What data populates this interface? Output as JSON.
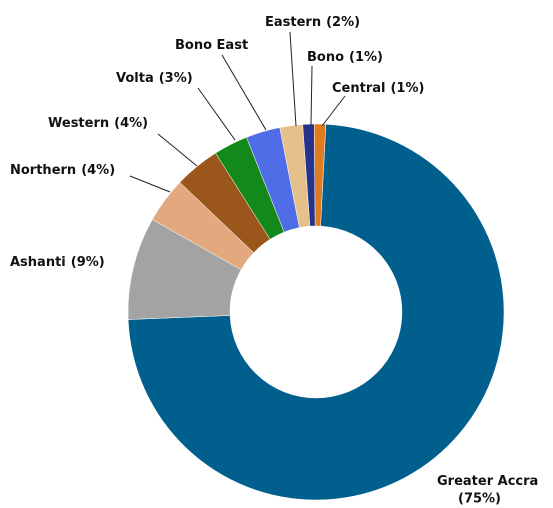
{
  "chart_data": {
    "type": "donut",
    "categories": [
      "Greater Accra",
      "Ashanti",
      "Northern",
      "Western",
      "Volta",
      "Bono East",
      "Eastern",
      "Bono",
      "Central"
    ],
    "values": [
      75,
      9,
      4,
      4,
      3,
      3,
      2,
      1,
      1
    ],
    "value_labels": [
      "(75%)",
      "(9%)",
      "(4%)",
      "(4%)",
      "(3%)",
      null,
      "(2%)",
      "(1%)",
      "(1%)"
    ],
    "colors": [
      "#005f8c",
      "#a3a3a3",
      "#e3a87e",
      "#9b561c",
      "#12891a",
      "#4f6de6",
      "#e6c08a",
      "#27338a",
      "#e07b20"
    ]
  }
}
